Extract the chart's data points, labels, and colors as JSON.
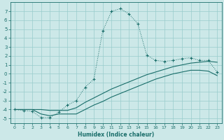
{
  "xlabel": "Humidex (Indice chaleur)",
  "background_color": "#cce8e8",
  "grid_color": "#99cccc",
  "line_color": "#1a6e6a",
  "ylim": [
    -5.5,
    8.0
  ],
  "xlim": [
    -0.5,
    23.5
  ],
  "yticks": [
    -5,
    -4,
    -3,
    -2,
    -1,
    0,
    1,
    2,
    3,
    4,
    5,
    6,
    7
  ],
  "xticks": [
    0,
    1,
    2,
    3,
    4,
    5,
    6,
    7,
    8,
    9,
    10,
    11,
    12,
    13,
    14,
    15,
    16,
    17,
    18,
    19,
    20,
    21,
    22,
    23
  ],
  "curve_x": [
    0,
    1,
    2,
    3,
    4,
    5,
    6,
    7,
    8,
    9,
    10,
    11,
    12,
    13,
    14,
    15,
    16,
    17,
    18,
    19,
    20,
    21,
    22,
    23
  ],
  "curve_y": [
    -4.0,
    -4.1,
    -4.2,
    -4.9,
    -4.9,
    -4.3,
    -3.5,
    -3.0,
    -1.5,
    -0.6,
    4.8,
    7.0,
    7.3,
    6.7,
    5.6,
    2.1,
    1.5,
    1.4,
    1.5,
    1.7,
    1.8,
    1.5,
    1.5,
    0.2
  ],
  "line_upper_x": [
    0,
    1,
    2,
    3,
    4,
    5,
    6,
    7,
    8,
    9,
    10,
    11,
    12,
    13,
    14,
    15,
    16,
    17,
    18,
    19,
    20,
    21,
    22,
    23
  ],
  "line_upper_y": [
    -4.0,
    -4.0,
    -4.0,
    -4.0,
    -4.1,
    -4.1,
    -4.1,
    -3.8,
    -3.2,
    -2.7,
    -2.2,
    -1.7,
    -1.3,
    -0.9,
    -0.5,
    -0.1,
    0.2,
    0.5,
    0.8,
    1.0,
    1.2,
    1.3,
    1.4,
    1.3
  ],
  "line_lower_x": [
    0,
    1,
    2,
    3,
    4,
    5,
    6,
    7,
    8,
    9,
    10,
    11,
    12,
    13,
    14,
    15,
    16,
    17,
    18,
    19,
    20,
    21,
    22,
    23
  ],
  "line_lower_y": [
    -4.0,
    -4.0,
    -4.0,
    -4.5,
    -4.7,
    -4.5,
    -4.5,
    -4.5,
    -4.0,
    -3.5,
    -3.1,
    -2.6,
    -2.2,
    -1.8,
    -1.4,
    -1.0,
    -0.6,
    -0.3,
    0.0,
    0.2,
    0.4,
    0.4,
    0.3,
    -0.2
  ]
}
